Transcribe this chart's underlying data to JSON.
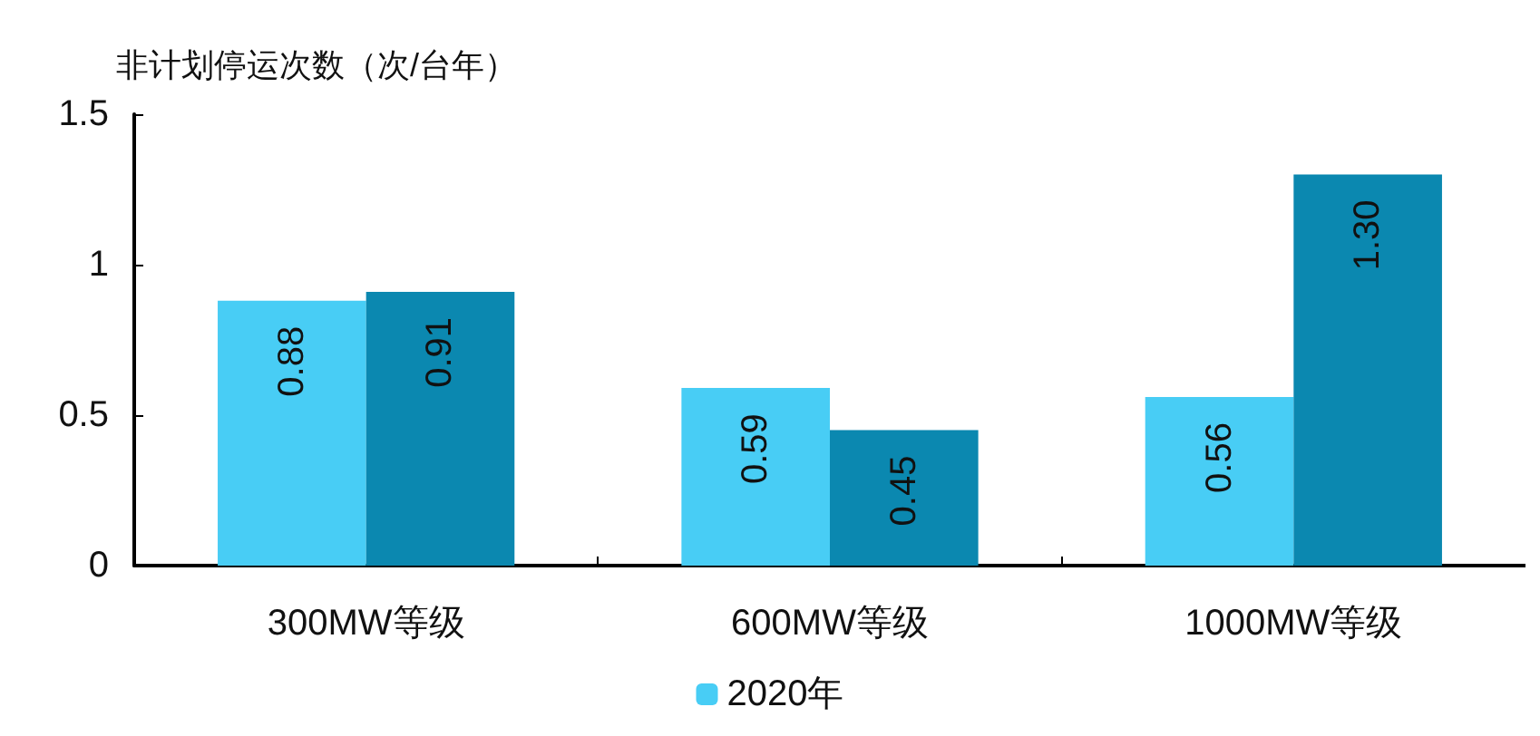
{
  "chart_data": {
    "type": "bar",
    "ylabel": "非计划停运次数（次/台年）",
    "categories": [
      "300MW等级",
      "600MW等级",
      "1000MW等级"
    ],
    "series": [
      {
        "name": "2020年",
        "color": "#48cdf5",
        "values": [
          0.88,
          0.59,
          0.56
        ],
        "value_labels": [
          "0.88",
          "0.59",
          "0.56"
        ]
      },
      {
        "color": "#0b88b0",
        "values": [
          0.91,
          0.45,
          1.3
        ],
        "value_labels": [
          "0.91",
          "0.45",
          "1.30"
        ]
      }
    ],
    "ylim": [
      0,
      1.5
    ],
    "yticks": [
      0,
      0.5,
      1,
      1.5
    ],
    "grid": false,
    "legend": "bottom"
  }
}
